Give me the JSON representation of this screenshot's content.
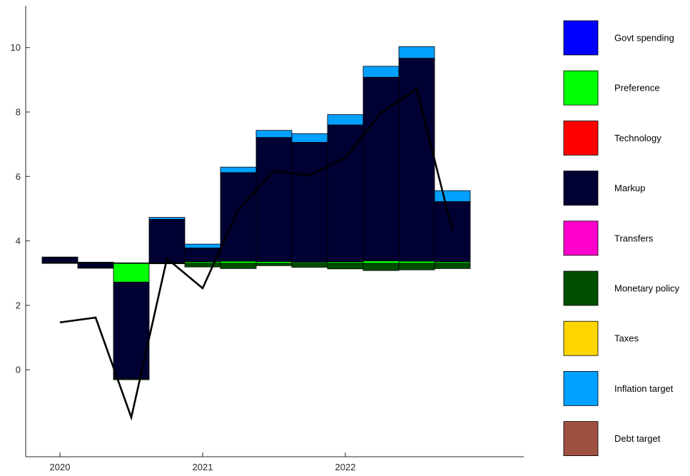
{
  "chart_data": {
    "type": "bar",
    "stacked": true,
    "baseline": 3.3,
    "x_ticks": [
      "2020",
      "2021",
      "2022"
    ],
    "y_ticks": [
      "0",
      "2",
      "4",
      "6",
      "8",
      "10"
    ],
    "ylim": [
      -2.7,
      11.3
    ],
    "periods": [
      "2020Q1",
      "2020Q2",
      "2020Q3",
      "2020Q4",
      "2021Q1",
      "2021Q2",
      "2021Q3",
      "2021Q4",
      "2022Q1",
      "2022Q2",
      "2022Q3",
      "2022Q4"
    ],
    "series": [
      {
        "name": "Govt spending",
        "color": "#0000ff",
        "values": [
          0,
          0,
          0,
          0,
          0,
          0,
          0,
          0,
          0,
          0,
          0,
          0
        ]
      },
      {
        "name": "Preference",
        "color": "#00ff00",
        "values": [
          0.02,
          0.02,
          -0.58,
          0.02,
          0.05,
          0.07,
          0.06,
          0.04,
          0.05,
          0.08,
          0.07,
          0.05
        ]
      },
      {
        "name": "Technology",
        "color": "#ff0000",
        "values": [
          0,
          0,
          0,
          0,
          0,
          0,
          0,
          0,
          0,
          0,
          0,
          0
        ]
      },
      {
        "name": "Markup",
        "color": "#000033",
        "values": [
          0.15,
          -0.13,
          -3.0,
          1.35,
          0.43,
          2.75,
          3.85,
          3.72,
          4.25,
          5.7,
          6.3,
          1.87
        ]
      },
      {
        "name": "Transfers",
        "color": "#ff00cc",
        "values": [
          0,
          0,
          0,
          0,
          0,
          0,
          0,
          0,
          0,
          0,
          0,
          0
        ]
      },
      {
        "name": "Monetary policy",
        "color": "#004d00",
        "values": [
          0.01,
          -0.02,
          -0.03,
          -0.01,
          -0.11,
          -0.16,
          -0.07,
          -0.12,
          -0.17,
          -0.22,
          -0.2,
          -0.16
        ]
      },
      {
        "name": "Taxes",
        "color": "#ffd500",
        "values": [
          0,
          0,
          0,
          0,
          0,
          0,
          0,
          0,
          0,
          0,
          0,
          0
        ]
      },
      {
        "name": "Inflation target",
        "color": "#00a0ff",
        "values": [
          0.02,
          0.02,
          0.02,
          0.06,
          0.12,
          0.17,
          0.22,
          0.27,
          0.32,
          0.34,
          0.36,
          0.34
        ]
      },
      {
        "name": "Debt target",
        "color": "#a05040",
        "values": [
          0,
          0,
          0,
          0,
          0,
          0,
          0,
          0,
          0,
          0,
          0,
          0
        ]
      }
    ],
    "line": {
      "name": "",
      "color": "#000000",
      "values": [
        1.47,
        1.62,
        -1.48,
        3.45,
        2.53,
        4.98,
        6.17,
        6.03,
        6.58,
        7.98,
        8.72,
        4.32
      ]
    }
  }
}
